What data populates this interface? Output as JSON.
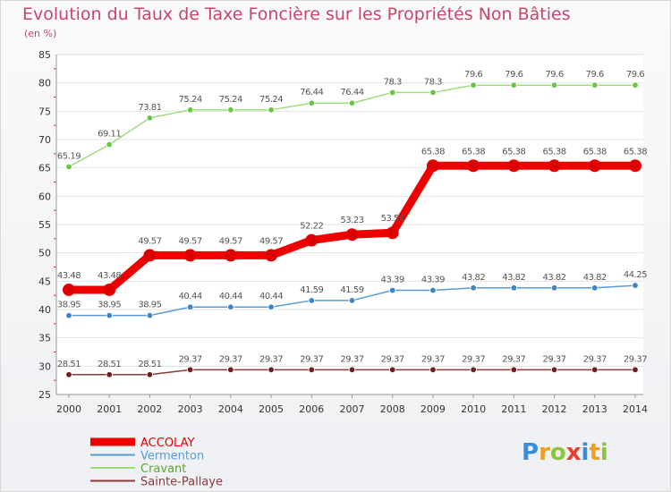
{
  "chart_data": {
    "type": "line",
    "title": "Evolution du Taux de Taxe Foncière sur les Propriétés Non Bâties",
    "subtitle": "(en %)",
    "categories": [
      "2000",
      "2001",
      "2002",
      "2003",
      "2004",
      "2005",
      "2006",
      "2007",
      "2008",
      "2009",
      "2010",
      "2011",
      "2012",
      "2013",
      "2014"
    ],
    "ylim": [
      25,
      85
    ],
    "yticks": [
      25,
      30,
      35,
      40,
      45,
      50,
      55,
      60,
      65,
      70,
      75,
      80,
      85
    ],
    "legend_position": "bottom-left",
    "series": [
      {
        "name": "ACCOLAY",
        "color": "#ee0000",
        "marker_color": "#dd0000",
        "label_color": "#555555",
        "values": [
          43.48,
          43.48,
          49.57,
          49.57,
          49.57,
          49.57,
          52.22,
          53.23,
          53.54,
          65.38,
          65.38,
          65.38,
          65.38,
          65.38,
          65.38
        ],
        "labels": [
          "43.48",
          "43.48",
          "49.57",
          "49.57",
          "49.57",
          "49.57",
          "52.22",
          "53.23",
          "53.54",
          "65.38",
          "65.38",
          "65.38",
          "65.38",
          "65.38",
          "65.38"
        ]
      },
      {
        "name": "Vermenton",
        "color": "#5b9bd5",
        "marker_color": "#3d85c6",
        "label_color": "#555555",
        "values": [
          38.95,
          38.95,
          38.95,
          40.44,
          40.44,
          40.44,
          41.59,
          41.59,
          43.39,
          43.39,
          43.82,
          43.82,
          43.82,
          43.82,
          44.25
        ],
        "labels": [
          "38.95",
          "38.95",
          "38.95",
          "40.44",
          "40.44",
          "40.44",
          "41.59",
          "41.59",
          "43.39",
          "43.39",
          "43.82",
          "43.82",
          "43.82",
          "43.82",
          "44.25"
        ]
      },
      {
        "name": "Cravant",
        "color": "#9fdc7a",
        "marker_color": "#6cc644",
        "label_color": "#555555",
        "values": [
          65.19,
          69.11,
          73.81,
          75.24,
          75.24,
          75.24,
          76.44,
          76.44,
          78.3,
          78.3,
          79.6,
          79.6,
          79.6,
          79.6,
          79.6
        ],
        "labels": [
          "65.19",
          "69.11",
          "73.81",
          "75.24",
          "75.24",
          "75.24",
          "76.44",
          "76.44",
          "78.3",
          "78.3",
          "79.6",
          "79.6",
          "79.6",
          "79.6",
          "79.6"
        ]
      },
      {
        "name": "Sainte-Pallaye",
        "color": "#8c3a3a",
        "marker_color": "#6b1f1f",
        "label_color": "#555555",
        "values": [
          28.51,
          28.51,
          28.51,
          29.37,
          29.37,
          29.37,
          29.37,
          29.37,
          29.37,
          29.37,
          29.37,
          29.37,
          29.37,
          29.37,
          29.37
        ],
        "labels": [
          "28.51",
          "28.51",
          "28.51",
          "29.37",
          "29.37",
          "29.37",
          "29.37",
          "29.37",
          "29.37",
          "29.37",
          "29.37",
          "29.37",
          "29.37",
          "29.37",
          "29.37"
        ]
      }
    ]
  },
  "logo": {
    "text": "Proxiti",
    "letters": [
      "P",
      "r",
      "o",
      "x",
      "i",
      "t",
      "i"
    ],
    "colors": [
      "#3c8dd8",
      "#f0a020",
      "#8cc63f",
      "#e84030",
      "#3c8dd8",
      "#f0a020",
      "#8cc63f"
    ]
  }
}
